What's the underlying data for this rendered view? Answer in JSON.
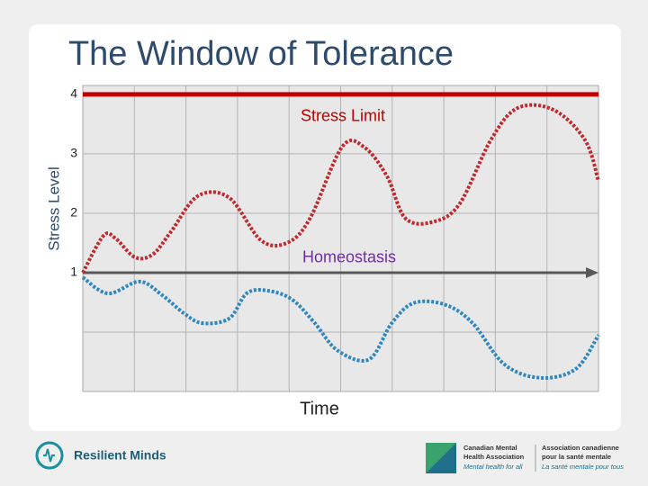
{
  "chart_data": {
    "type": "line",
    "title": "The Window of Tolerance",
    "xlabel": "Time",
    "ylabel": "Stress Level",
    "xlim": [
      0,
      10
    ],
    "xgrid_lines": [
      1,
      2,
      3,
      4,
      5,
      6,
      7,
      8,
      9
    ],
    "ylim": [
      -1,
      4.15
    ],
    "yticks": [
      1,
      2,
      3,
      4
    ],
    "minor_yticks": [
      0
    ],
    "grid": true,
    "reference_lines": [
      {
        "label": "Stress Limit",
        "value": 4,
        "color": "#c00000"
      },
      {
        "label": "Homeostasis",
        "value": 1,
        "color": "#595959"
      }
    ],
    "series": [
      {
        "color": "#c0282d",
        "x": [
          0,
          0.4,
          0.63,
          1.01,
          1.36,
          1.71,
          2.23,
          2.84,
          3.46,
          3.98,
          4.41,
          5.03,
          5.46,
          5.9,
          6.25,
          6.77,
          7.3,
          7.91,
          8.43,
          9.13,
          9.74,
          10
        ],
        "values": [
          1,
          1.62,
          1.58,
          1.26,
          1.31,
          1.69,
          2.29,
          2.26,
          1.54,
          1.51,
          1.92,
          3.12,
          3.11,
          2.62,
          1.92,
          1.85,
          2.15,
          3.23,
          3.77,
          3.74,
          3.23,
          2.54
        ]
      },
      {
        "color": "#2e86c1",
        "x": [
          0,
          0.49,
          1.1,
          1.54,
          1.97,
          2.32,
          2.84,
          3.19,
          3.63,
          4.07,
          4.5,
          4.94,
          5.55,
          5.99,
          6.42,
          7.03,
          7.56,
          8.17,
          8.87,
          9.56,
          10
        ],
        "values": [
          0.92,
          0.65,
          0.85,
          0.62,
          0.31,
          0.15,
          0.23,
          0.66,
          0.69,
          0.54,
          0.15,
          -0.31,
          -0.46,
          0.15,
          0.49,
          0.46,
          0.15,
          -0.54,
          -0.77,
          -0.62,
          -0.05
        ]
      }
    ]
  },
  "footer": {
    "left_logo": "Resilient Minds",
    "right_logo_en": [
      "Canadian Mental",
      "Health Association",
      "Mental health for all"
    ],
    "right_logo_fr": [
      "Association canadienne",
      "pour la santé mentale",
      "La santé mentale pour tous"
    ]
  }
}
